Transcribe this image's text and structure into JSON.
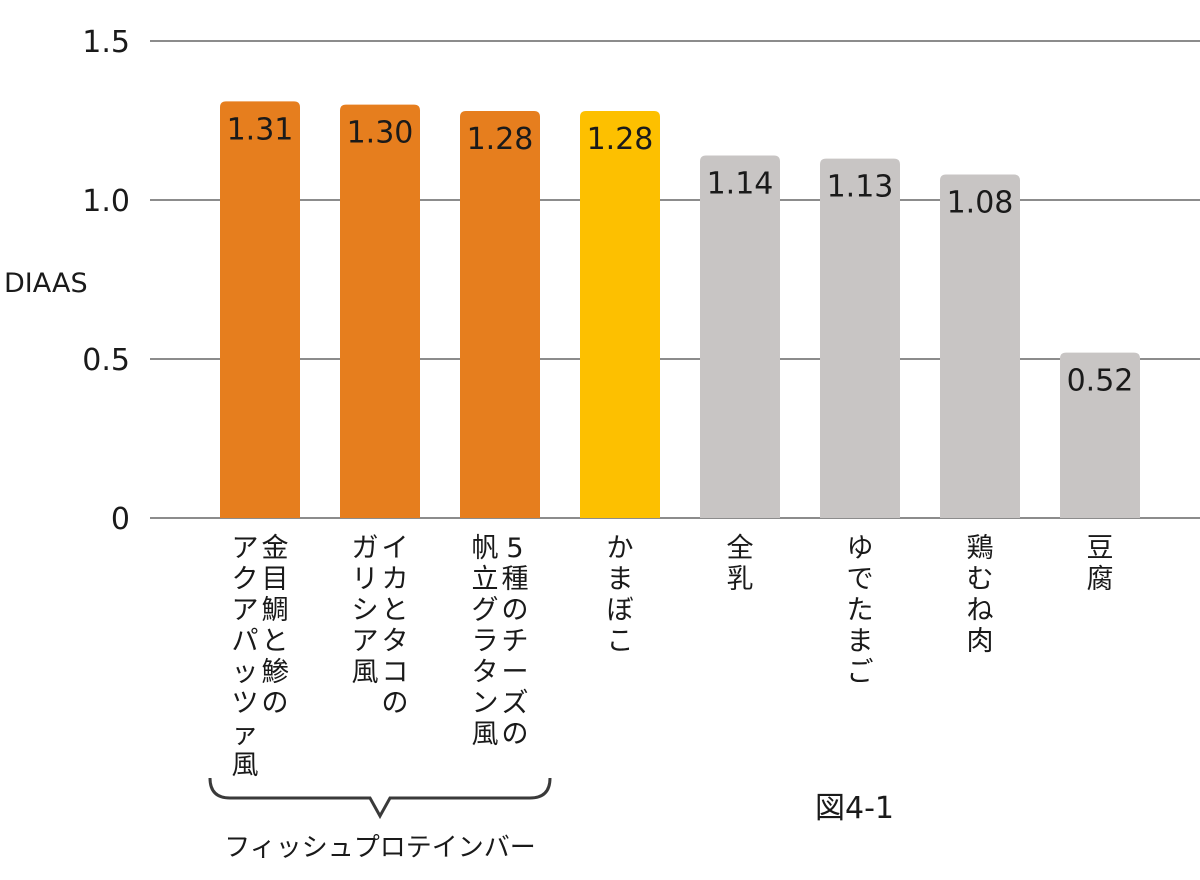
{
  "chart_data": {
    "type": "bar",
    "ylabel": "DIAAS",
    "ylim": [
      0,
      1.5
    ],
    "yticks": [
      {
        "value": 0,
        "label": "0"
      },
      {
        "value": 0.5,
        "label": "0.5"
      },
      {
        "value": 1.0,
        "label": "1.0"
      },
      {
        "value": 1.5,
        "label": "1.5"
      }
    ],
    "grid": true,
    "categories": [
      [
        "金目鯛と鯵の",
        "アクアパッツァ風"
      ],
      [
        "イカとタコの",
        "ガリシア風"
      ],
      [
        "5種のチーズの",
        "帆立グラタン風"
      ],
      [
        "かまぼこ"
      ],
      [
        "全乳"
      ],
      [
        "ゆでたまご"
      ],
      [
        "鶏むね肉"
      ],
      [
        "豆腐"
      ]
    ],
    "values": [
      1.31,
      1.3,
      1.28,
      1.28,
      1.14,
      1.13,
      1.08,
      0.52
    ],
    "value_labels": [
      "1.31",
      "1.30",
      "1.28",
      "1.28",
      "1.14",
      "1.13",
      "1.08",
      "0.52"
    ],
    "colors": [
      "#e67e1e",
      "#e67e1e",
      "#e67e1e",
      "#fdc000",
      "#c8c5c4",
      "#c8c5c4",
      "#c8c5c4",
      "#c8c5c4"
    ],
    "groups": [
      {
        "label": "フィッシュプロテインバー",
        "from": 0,
        "to": 2
      }
    ],
    "figure_label": "図4-1"
  }
}
